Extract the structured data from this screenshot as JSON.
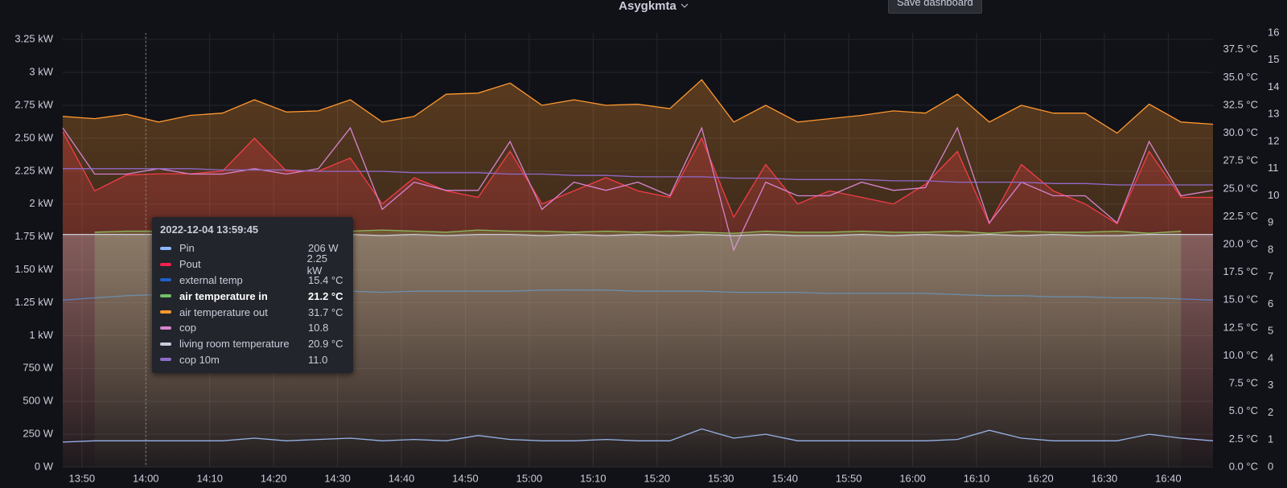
{
  "chart_data": {
    "type": "line",
    "title": "Asygkmta",
    "x": [
      "13:47",
      "13:52",
      "13:57",
      "14:02",
      "14:07",
      "14:12",
      "14:17",
      "14:22",
      "14:27",
      "14:32",
      "14:37",
      "14:42",
      "14:47",
      "14:52",
      "14:57",
      "15:02",
      "15:07",
      "15:12",
      "15:17",
      "15:22",
      "15:27",
      "15:32",
      "15:37",
      "15:42",
      "15:47",
      "15:52",
      "15:57",
      "16:02",
      "16:07",
      "16:12",
      "16:17",
      "16:22",
      "16:27",
      "16:32",
      "16:37",
      "16:42",
      "16:47"
    ],
    "xlim": [
      "13:47",
      "16:47"
    ],
    "xticks": [
      "13:50",
      "14:00",
      "14:10",
      "14:20",
      "14:30",
      "14:40",
      "14:50",
      "15:00",
      "15:10",
      "15:20",
      "15:30",
      "15:40",
      "15:50",
      "16:00",
      "16:10",
      "16:20",
      "16:30",
      "16:40"
    ],
    "ylim": [
      0,
      3.3
    ],
    "yticks": [
      {
        "value": 0,
        "label": "0 W"
      },
      {
        "value": 0.25,
        "label": "250 W"
      },
      {
        "value": 0.5,
        "label": "500 W"
      },
      {
        "value": 0.75,
        "label": "750 W"
      },
      {
        "value": 1,
        "label": "1 kW"
      },
      {
        "value": 1.25,
        "label": "1.25 kW"
      },
      {
        "value": 1.5,
        "label": "1.50 kW"
      },
      {
        "value": 1.75,
        "label": "1.75 kW"
      },
      {
        "value": 2,
        "label": "2 kW"
      },
      {
        "value": 2.25,
        "label": "2.25 kW"
      },
      {
        "value": 2.5,
        "label": "2.50 kW"
      },
      {
        "value": 2.75,
        "label": "2.75 kW"
      },
      {
        "value": 3,
        "label": "3 kW"
      },
      {
        "value": 3.25,
        "label": "3.25 kW"
      }
    ],
    "y2lim": [
      0,
      39
    ],
    "y2ticks": [
      {
        "value": 0,
        "label": "0.0 °C"
      },
      {
        "value": 2.5,
        "label": "2.5 °C"
      },
      {
        "value": 5,
        "label": "5.0 °C"
      },
      {
        "value": 7.5,
        "label": "7.5 °C"
      },
      {
        "value": 10,
        "label": "10.0 °C"
      },
      {
        "value": 12.5,
        "label": "12.5 °C"
      },
      {
        "value": 15,
        "label": "15.0 °C"
      },
      {
        "value": 17.5,
        "label": "17.5 °C"
      },
      {
        "value": 20,
        "label": "20.0 °C"
      },
      {
        "value": 22.5,
        "label": "22.5 °C"
      },
      {
        "value": 25,
        "label": "25.0 °C"
      },
      {
        "value": 27.5,
        "label": "27.5 °C"
      },
      {
        "value": 30,
        "label": "30.0 °C"
      },
      {
        "value": 32.5,
        "label": "32.5 °C"
      },
      {
        "value": 35,
        "label": "35.0 °C"
      },
      {
        "value": 37.5,
        "label": "37.5 °C"
      }
    ],
    "y3lim": [
      0,
      16
    ],
    "y3ticks": [
      0,
      1,
      2,
      3,
      4,
      5,
      6,
      7,
      8,
      9,
      10,
      11,
      12,
      13,
      14,
      15,
      16
    ],
    "grid": true,
    "series": [
      {
        "name": "Pin",
        "color": "#8ab8ff",
        "axis": "y",
        "fill": false,
        "values": [
          0.19,
          0.2,
          0.2,
          0.2,
          0.2,
          0.2,
          0.22,
          0.2,
          0.21,
          0.22,
          0.2,
          0.21,
          0.2,
          0.24,
          0.21,
          0.2,
          0.2,
          0.21,
          0.2,
          0.2,
          0.29,
          0.22,
          0.25,
          0.2,
          0.2,
          0.2,
          0.2,
          0.2,
          0.21,
          0.28,
          0.22,
          0.2,
          0.2,
          0.2,
          0.25,
          0.22,
          0.2
        ]
      },
      {
        "name": "Pout",
        "color": "#f2214f",
        "axis": "y",
        "fill": true,
        "values": [
          2.55,
          2.1,
          2.22,
          2.23,
          2.23,
          2.25,
          2.5,
          2.25,
          2.25,
          2.35,
          2.0,
          2.2,
          2.1,
          2.05,
          2.4,
          2.0,
          2.1,
          2.2,
          2.1,
          2.05,
          2.5,
          1.9,
          2.3,
          2.0,
          2.1,
          2.05,
          2.0,
          2.15,
          2.4,
          1.85,
          2.3,
          2.1,
          2.0,
          1.85,
          2.4,
          2.05,
          2.05
        ]
      },
      {
        "name": "external temp",
        "color": "#1f60c4",
        "axis": "y2",
        "fill": false,
        "values": [
          15.0,
          15.2,
          15.4,
          15.5,
          15.5,
          15.6,
          15.6,
          15.7,
          15.7,
          15.8,
          15.7,
          15.8,
          15.8,
          15.8,
          15.8,
          15.9,
          15.9,
          15.9,
          15.8,
          15.8,
          15.8,
          15.7,
          15.7,
          15.7,
          15.6,
          15.6,
          15.6,
          15.6,
          15.5,
          15.4,
          15.4,
          15.3,
          15.3,
          15.2,
          15.2,
          15.1,
          15.0
        ]
      },
      {
        "name": "air temperature in",
        "color": "#73bf69",
        "axis": "y2",
        "fill": true,
        "values": [
          null,
          21.1,
          21.2,
          21.2,
          21.2,
          21.1,
          21.2,
          21.1,
          21.2,
          21.2,
          21.3,
          21.2,
          21.1,
          21.3,
          21.2,
          21.2,
          21.1,
          21.2,
          21.1,
          21.2,
          21.1,
          21.0,
          21.2,
          21.1,
          21.1,
          21.2,
          21.1,
          21.1,
          21.2,
          21.0,
          21.2,
          21.1,
          21.1,
          21.2,
          21.0,
          21.2,
          null
        ]
      },
      {
        "name": "air temperature out",
        "color": "#ff9830",
        "axis": "y2",
        "fill": true,
        "values": [
          31.5,
          31.3,
          31.7,
          31.0,
          31.6,
          31.8,
          33.0,
          31.9,
          32.0,
          33.0,
          31.0,
          31.5,
          33.5,
          33.6,
          34.5,
          32.5,
          33.0,
          32.5,
          32.6,
          32.2,
          34.8,
          31.0,
          32.5,
          31.0,
          31.3,
          31.6,
          32.0,
          31.8,
          33.5,
          31.0,
          32.5,
          31.8,
          31.8,
          30.0,
          32.6,
          31.0,
          30.8
        ]
      },
      {
        "name": "cop",
        "color": "#d683ce",
        "axis": "y3",
        "fill": false,
        "values": [
          12.5,
          10.8,
          10.8,
          11.0,
          10.8,
          10.8,
          11.0,
          10.8,
          11.0,
          12.5,
          9.5,
          10.5,
          10.2,
          10.2,
          12.0,
          9.5,
          10.5,
          10.2,
          10.5,
          10.0,
          12.5,
          8.0,
          10.5,
          10.0,
          10.0,
          10.5,
          10.2,
          10.3,
          12.5,
          9.0,
          10.5,
          10.0,
          10.0,
          9.0,
          12.0,
          10.0,
          10.2
        ]
      },
      {
        "name": "living room temperature",
        "color": "#ccccdc",
        "axis": "y2",
        "fill": true,
        "values": [
          20.9,
          20.9,
          20.9,
          20.9,
          20.8,
          20.9,
          20.9,
          20.8,
          20.9,
          20.9,
          20.8,
          20.9,
          20.8,
          20.9,
          20.9,
          20.8,
          20.9,
          20.8,
          20.9,
          20.8,
          20.9,
          20.8,
          20.9,
          20.8,
          20.8,
          20.9,
          20.8,
          20.9,
          20.8,
          20.9,
          20.8,
          20.9,
          20.8,
          20.8,
          20.9,
          20.9,
          20.9
        ]
      },
      {
        "name": "cop 10m",
        "color": "#8f6bc9",
        "axis": "y3",
        "fill": false,
        "values": [
          11.0,
          11.0,
          11.0,
          11.0,
          11.0,
          10.95,
          10.95,
          10.95,
          10.9,
          10.9,
          10.9,
          10.85,
          10.85,
          10.85,
          10.8,
          10.8,
          10.75,
          10.75,
          10.7,
          10.7,
          10.7,
          10.65,
          10.65,
          10.6,
          10.6,
          10.6,
          10.55,
          10.55,
          10.5,
          10.5,
          10.5,
          10.45,
          10.45,
          10.4,
          10.4,
          10.4,
          10.4
        ]
      }
    ]
  },
  "save_button": "Save dashboard",
  "tooltip": {
    "time": "2022-12-04 13:59:45",
    "values": [
      "206 W",
      "2.25 kW",
      "15.4 °C",
      "21.2 °C",
      "31.7 °C",
      "10.8",
      "20.9 °C",
      "11.0"
    ]
  }
}
